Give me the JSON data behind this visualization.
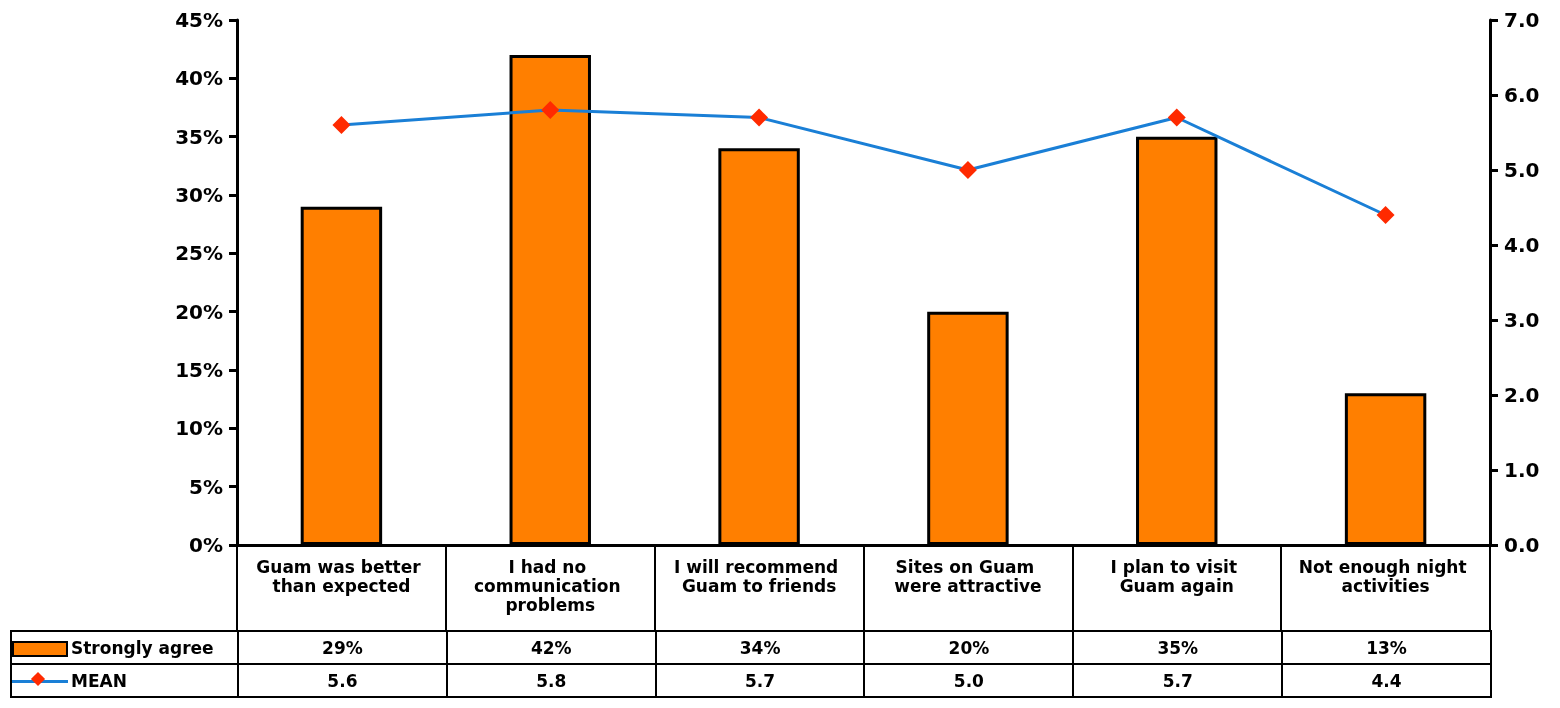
{
  "chart_data": {
    "type": "bar",
    "categories": [
      "Guam was better than expected",
      "I had no communication problems",
      "I will recommend Guam to friends",
      "Sites on Guam were attractive",
      "I plan to visit Guam again",
      "Not enough night activities"
    ],
    "series": [
      {
        "name": "Strongly agree",
        "color": "#ff7f00",
        "values": [
          29,
          42,
          34,
          20,
          35,
          13
        ],
        "value_labels": [
          "29%",
          "42%",
          "34%",
          "20%",
          "35%",
          "13%"
        ]
      },
      {
        "name": "MEAN",
        "type": "line",
        "axis": "y2",
        "color": "#1a7fd6",
        "colors": [
          "#ff2a00",
          "#ff2a00",
          "#ff2a00",
          "#ff2a00",
          "#ff2a00",
          "#ff2a00"
        ],
        "marker": "diamond",
        "values": [
          5.6,
          5.8,
          5.7,
          5.0,
          5.7,
          4.4
        ],
        "value_labels": [
          "5.6",
          "5.8",
          "5.7",
          "5.0",
          "5.7",
          "4.4"
        ]
      }
    ],
    "ylim": [
      0,
      45
    ],
    "yticks": [
      {
        "value": 0,
        "label": "0%"
      },
      {
        "value": 5,
        "label": "5%"
      },
      {
        "value": 10,
        "label": "10%"
      },
      {
        "value": 15,
        "label": "15%"
      },
      {
        "value": 20,
        "label": "20%"
      },
      {
        "value": 25,
        "label": "25%"
      },
      {
        "value": 30,
        "label": "30%"
      },
      {
        "value": 35,
        "label": "35%"
      },
      {
        "value": 40,
        "label": "40%"
      },
      {
        "value": 45,
        "label": "45%"
      }
    ],
    "y2lim": [
      0,
      7
    ],
    "y2ticks": [
      {
        "value": 0,
        "label": "0.0"
      },
      {
        "value": 1,
        "label": "1.0"
      },
      {
        "value": 2,
        "label": "2.0"
      },
      {
        "value": 3,
        "label": "3.0"
      },
      {
        "value": 4,
        "label": "4.0"
      },
      {
        "value": 5,
        "label": "5.0"
      },
      {
        "value": 6,
        "label": "6.0"
      },
      {
        "value": 7,
        "label": "7.0"
      }
    ],
    "grid": false,
    "legend": "bottom"
  }
}
